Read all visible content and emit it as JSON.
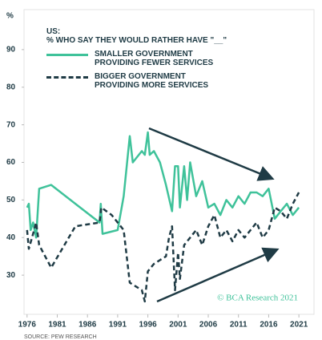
{
  "chart_data": {
    "type": "line",
    "title": "US:",
    "subtitle": "% WHO SAY THEY WOULD RATHER HAVE \"__\"",
    "y_label": "%",
    "xlim": [
      1975.5,
      2023.5
    ],
    "xticks": [
      1976,
      1981,
      1986,
      1991,
      1996,
      2001,
      2006,
      2011,
      2016,
      2021
    ],
    "ylim": [
      20,
      100
    ],
    "yticks": [
      30,
      40,
      50,
      60,
      70,
      80,
      90
    ],
    "annotations": [
      "© BCA Research 2021",
      "SOURCE: PEW RESEARCH"
    ],
    "series": [
      {
        "name": "SMALLER GOVERNMENT PROVIDING FEWER SERVICES",
        "color": "#3fc29a",
        "dashed": false,
        "x": [
          1976,
          1976.3,
          1976.6,
          1977,
          1977.5,
          1978,
          1980,
          1984,
          1988,
          1988.2,
          1988.5,
          1991,
          1992,
          1993,
          1993.5,
          1995,
          1995.5,
          1996,
          1996.3,
          1997,
          1998,
          1999,
          2000,
          2000.5,
          2001,
          2001.3,
          2002,
          2002.5,
          2003,
          2004,
          2005,
          2006,
          2007,
          2008,
          2009,
          2010,
          2011,
          2012,
          2013,
          2014,
          2015,
          2016,
          2017,
          2018,
          2019,
          2020,
          2021
        ],
        "values": [
          48,
          49,
          42,
          44,
          40,
          53,
          54,
          49,
          44,
          49,
          41,
          42,
          51,
          67,
          60,
          63,
          62,
          68,
          62,
          63,
          60,
          54,
          47,
          59,
          59,
          48,
          59,
          50,
          60,
          51,
          55,
          48,
          49,
          46,
          50,
          48,
          51,
          49,
          52,
          52,
          51,
          53,
          45,
          47,
          49,
          46,
          48
        ]
      },
      {
        "name": "BIGGER GOVERNMENT PROVIDING MORE SERVICES",
        "color": "#1f3b45",
        "dashed": true,
        "x": [
          1976,
          1976.3,
          1977,
          1977.5,
          1978,
          1980,
          1984,
          1988,
          1988.3,
          1990,
          1992,
          1993,
          1995,
          1995.5,
          1996,
          1997,
          1999,
          1999.5,
          2000,
          2000.5,
          2001,
          2001.3,
          2002,
          2003,
          2004,
          2005,
          2006,
          2007,
          2008,
          2009,
          2010,
          2011,
          2012,
          2013,
          2014,
          2015,
          2016,
          2017,
          2018,
          2019,
          2020,
          2021
        ],
        "values": [
          42,
          37,
          41,
          44,
          38,
          32,
          43,
          44,
          48,
          46,
          42,
          28,
          26,
          23,
          31,
          33,
          35,
          40,
          43,
          26,
          36,
          29,
          38,
          40,
          42,
          38,
          43,
          46,
          40,
          42,
          39,
          42,
          40,
          42,
          44,
          40,
          42,
          48,
          47,
          45,
          49,
          52
        ]
      }
    ]
  }
}
